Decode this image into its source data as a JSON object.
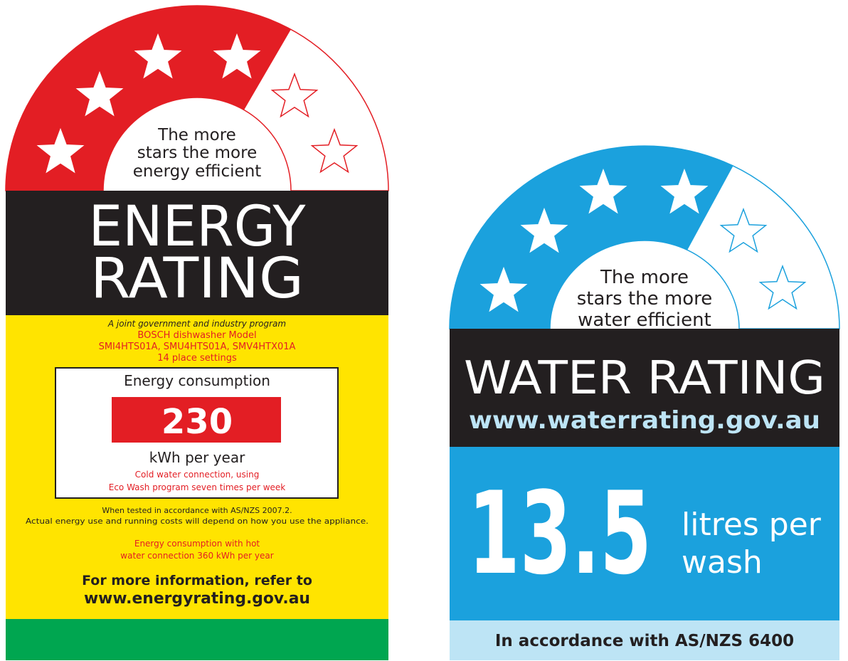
{
  "energy_label": {
    "arch_text": [
      "The more",
      "stars the more",
      "energy efficient"
    ],
    "title": [
      "ENERGY",
      "RATING"
    ],
    "program": "A joint government and industry program",
    "model": [
      "BOSCH dishwasher Model",
      "SMI4HTS01A, SMU4HTS01A, SMV4HTX01A",
      "14 place settings"
    ],
    "consumption_label": "Energy consumption",
    "consumption_value": "230",
    "consumption_unit": "kWh per year",
    "conditions": [
      "Cold water connection, using",
      "Eco Wash program seven times per week"
    ],
    "test_note": [
      "When tested in accordance with AS/NZS 2007.2.",
      "Actual energy use and running costs will depend on how you use the appliance."
    ],
    "hot_water": [
      "Energy consumption with hot",
      "water connection 360 kWh per year"
    ],
    "more_info": "For more information, refer to",
    "url": "www.energyrating.gov.au"
  },
  "water_label": {
    "arch_text": [
      "The more",
      "stars the more",
      "water efficient"
    ],
    "title": "WATER RATING",
    "url": "www.waterrating.gov.au",
    "value": "13.5",
    "unit": [
      "litres per",
      "wash"
    ],
    "standard": "In accordance with AS/NZS 6400"
  }
}
